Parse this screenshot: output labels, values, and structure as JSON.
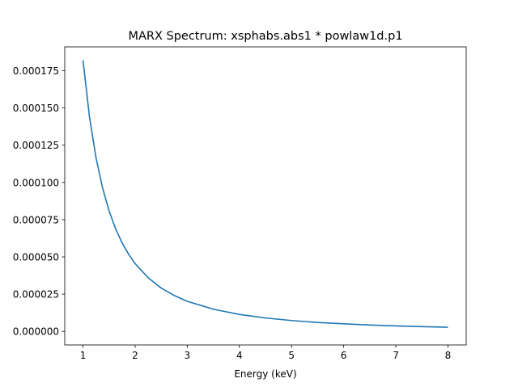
{
  "chart_data": {
    "type": "line",
    "title": "MARX Spectrum: xsphabs.abs1 * powlaw1d.p1",
    "xlabel": "Energy (keV)",
    "ylabel": "",
    "xlim": [
      0.65,
      8.35
    ],
    "ylim": [
      -9.1e-06,
      0.000191
    ],
    "xticks": [
      1,
      2,
      3,
      4,
      5,
      6,
      7,
      8
    ],
    "xtick_labels": [
      "1",
      "2",
      "3",
      "4",
      "5",
      "6",
      "7",
      "8"
    ],
    "yticks": [
      0,
      2.5e-05,
      5e-05,
      7.5e-05,
      0.0001,
      0.000125,
      0.00015,
      0.000175
    ],
    "ytick_labels": [
      "0.000000",
      "0.000025",
      "0.000050",
      "0.000075",
      "0.000100",
      "0.000125",
      "0.000150",
      "0.000175"
    ],
    "grid": false,
    "series": [
      {
        "color": "#1f77b4",
        "x": [
          1.0,
          1.125,
          1.25,
          1.375,
          1.5,
          1.625,
          1.75,
          1.875,
          2.0,
          2.25,
          2.5,
          2.75,
          3.0,
          3.5,
          4.0,
          4.5,
          5.0,
          5.5,
          6.0,
          6.5,
          7.0,
          7.5,
          8.0
        ],
        "y": [
          0.000182,
          0.0001438,
          0.0001165,
          9.63e-05,
          8.09e-05,
          6.89e-05,
          5.94e-05,
          5.18e-05,
          4.55e-05,
          3.6e-05,
          2.91e-05,
          2.41e-05,
          2.02e-05,
          1.49e-05,
          1.14e-05,
          9e-06,
          7.3e-06,
          6e-06,
          5.1e-06,
          4.3e-06,
          3.7e-06,
          3.2e-06,
          2.8e-06
        ]
      }
    ]
  }
}
